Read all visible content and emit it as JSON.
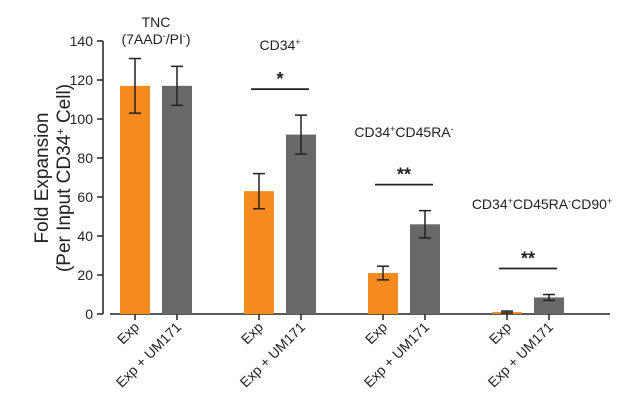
{
  "chart_data": {
    "type": "bar",
    "title": "",
    "ylabel_line1": "Fold Expansion",
    "ylabel_line2_parts": [
      "(Per Input CD34",
      "+",
      " Cell)"
    ],
    "ylim": [
      0,
      140
    ],
    "yticks": [
      "0",
      "20",
      "40",
      "60",
      "80",
      "100",
      "120",
      "140"
    ],
    "colors": {
      "Exp": "#f58a1f",
      "Exp + UM171": "#686868"
    },
    "series_names": [
      "Exp",
      "Exp + UM171"
    ],
    "groups": [
      {
        "label_lines": [
          [
            {
              "t": "TNC"
            }
          ],
          [
            {
              "t": "(7AAD"
            },
            {
              "t": "-",
              "sup": true
            },
            {
              "t": "/PI"
            },
            {
              "t": "-",
              "sup": true
            },
            {
              "t": ")"
            }
          ]
        ],
        "values": [
          117,
          117
        ],
        "errors": [
          14,
          10
        ],
        "significance": ""
      },
      {
        "label_lines": [
          [
            {
              "t": "CD34"
            },
            {
              "t": "+",
              "sup": true
            }
          ]
        ],
        "values": [
          63,
          92
        ],
        "errors": [
          9,
          10
        ],
        "significance": "*"
      },
      {
        "label_lines": [
          [
            {
              "t": "CD34"
            },
            {
              "t": "+",
              "sup": true
            },
            {
              "t": "CD45RA"
            },
            {
              "t": "-",
              "sup": true
            }
          ]
        ],
        "values": [
          21,
          46
        ],
        "errors": [
          3.5,
          7
        ],
        "significance": "**"
      },
      {
        "label_lines": [
          [
            {
              "t": "CD34"
            },
            {
              "t": "+",
              "sup": true
            },
            {
              "t": "CD45RA"
            },
            {
              "t": "-",
              "sup": true
            },
            {
              "t": "CD90"
            },
            {
              "t": "+",
              "sup": true
            }
          ]
        ],
        "values": [
          1,
          8.5
        ],
        "errors": [
          0.5,
          1.5
        ],
        "significance": "**"
      }
    ],
    "grid": false,
    "legend": "none"
  }
}
